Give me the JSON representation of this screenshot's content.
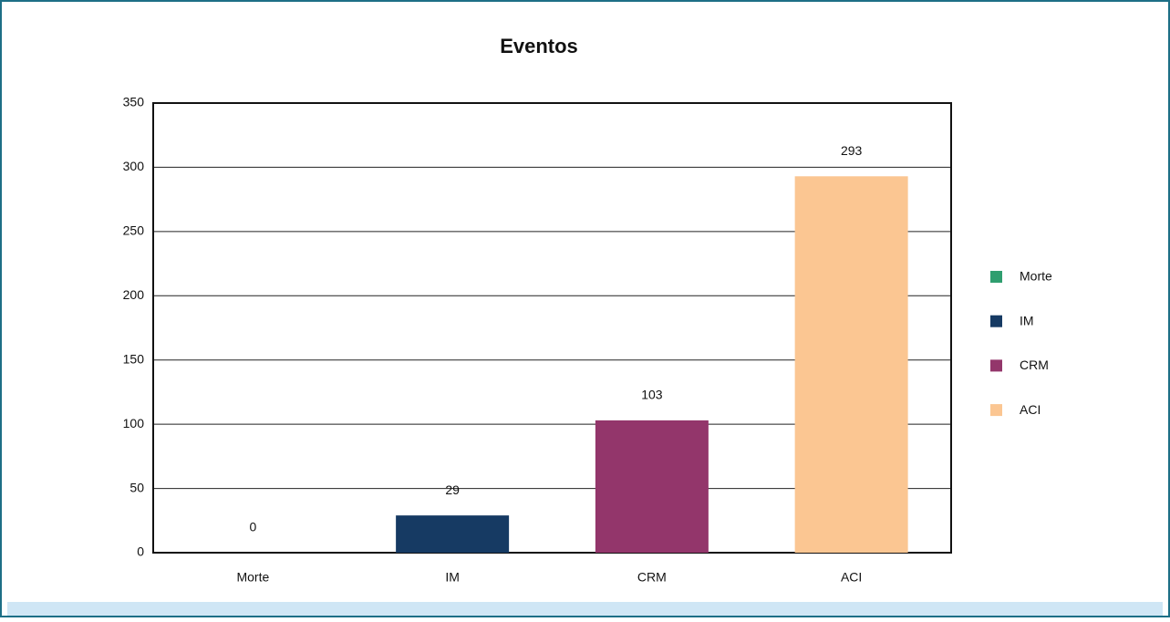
{
  "chart_data": {
    "type": "bar",
    "title": "Eventos",
    "categories": [
      "Morte",
      "IM",
      "CRM",
      "ACI"
    ],
    "values": [
      0,
      29,
      103,
      293
    ],
    "colors": [
      "#2f9e6f",
      "#163a63",
      "#93366b",
      "#fbc692"
    ],
    "ylim": [
      0,
      350
    ],
    "yticks": [
      0,
      50,
      100,
      150,
      200,
      250,
      300,
      350
    ],
    "grid": true,
    "legend": "right"
  }
}
